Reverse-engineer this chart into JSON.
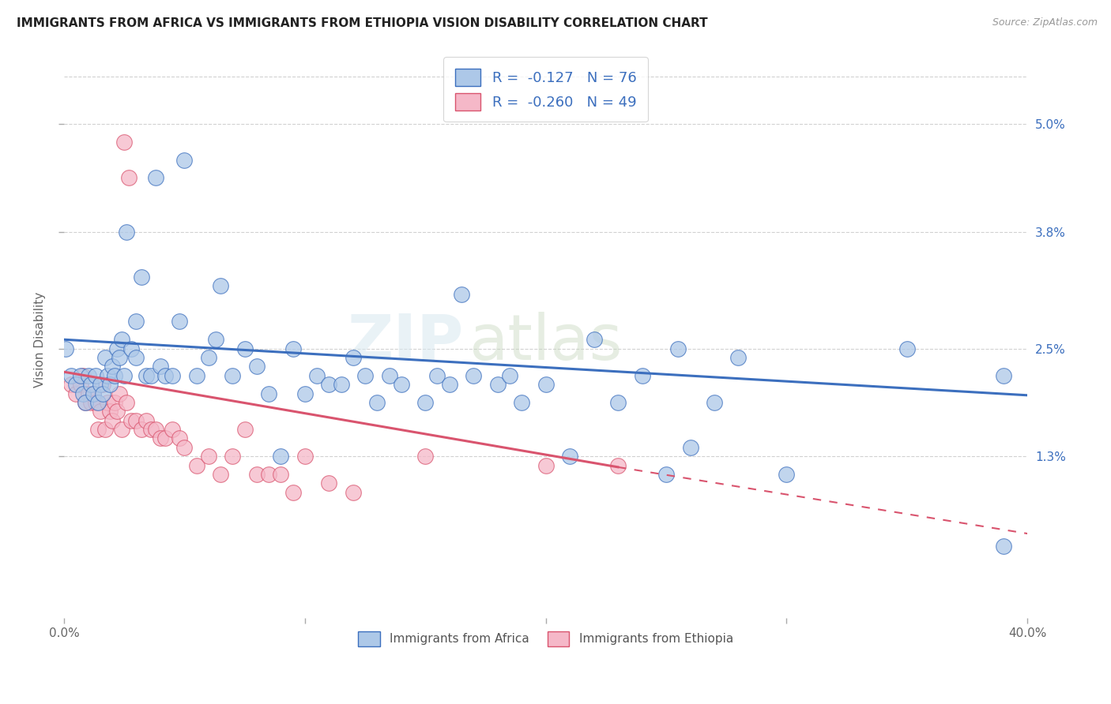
{
  "title": "IMMIGRANTS FROM AFRICA VS IMMIGRANTS FROM ETHIOPIA VISION DISABILITY CORRELATION CHART",
  "source": "Source: ZipAtlas.com",
  "ylabel": "Vision Disability",
  "right_yticks": [
    "5.0%",
    "3.8%",
    "2.5%",
    "1.3%"
  ],
  "right_ytick_vals": [
    0.05,
    0.038,
    0.025,
    0.013
  ],
  "xlim": [
    0.0,
    0.4
  ],
  "ylim": [
    -0.005,
    0.057
  ],
  "legend_R_africa": "-0.127",
  "legend_N_africa": "76",
  "legend_R_ethiopia": "-0.260",
  "legend_N_ethiopia": "49",
  "africa_color": "#adc8e8",
  "ethiopia_color": "#f5b8c8",
  "africa_line_color": "#3c6fbe",
  "ethiopia_line_color": "#d9546e",
  "watermark": "ZIPatlas",
  "africa_scatter_x": [
    0.0005,
    0.003,
    0.005,
    0.007,
    0.008,
    0.009,
    0.01,
    0.011,
    0.012,
    0.013,
    0.014,
    0.015,
    0.016,
    0.017,
    0.018,
    0.019,
    0.02,
    0.021,
    0.022,
    0.023,
    0.024,
    0.025,
    0.026,
    0.028,
    0.03,
    0.03,
    0.032,
    0.034,
    0.036,
    0.038,
    0.04,
    0.042,
    0.045,
    0.048,
    0.05,
    0.055,
    0.06,
    0.063,
    0.065,
    0.07,
    0.075,
    0.08,
    0.085,
    0.09,
    0.095,
    0.1,
    0.105,
    0.11,
    0.115,
    0.12,
    0.125,
    0.13,
    0.135,
    0.14,
    0.15,
    0.155,
    0.16,
    0.165,
    0.17,
    0.18,
    0.185,
    0.19,
    0.2,
    0.21,
    0.22,
    0.23,
    0.24,
    0.25,
    0.255,
    0.26,
    0.27,
    0.28,
    0.3,
    0.35,
    0.39,
    0.39
  ],
  "africa_scatter_y": [
    0.025,
    0.022,
    0.021,
    0.022,
    0.02,
    0.019,
    0.022,
    0.021,
    0.02,
    0.022,
    0.019,
    0.021,
    0.02,
    0.024,
    0.022,
    0.021,
    0.023,
    0.022,
    0.025,
    0.024,
    0.026,
    0.022,
    0.038,
    0.025,
    0.028,
    0.024,
    0.033,
    0.022,
    0.022,
    0.044,
    0.023,
    0.022,
    0.022,
    0.028,
    0.046,
    0.022,
    0.024,
    0.026,
    0.032,
    0.022,
    0.025,
    0.023,
    0.02,
    0.013,
    0.025,
    0.02,
    0.022,
    0.021,
    0.021,
    0.024,
    0.022,
    0.019,
    0.022,
    0.021,
    0.019,
    0.022,
    0.021,
    0.031,
    0.022,
    0.021,
    0.022,
    0.019,
    0.021,
    0.013,
    0.026,
    0.019,
    0.022,
    0.011,
    0.025,
    0.014,
    0.019,
    0.024,
    0.011,
    0.025,
    0.022,
    0.003
  ],
  "ethiopia_scatter_x": [
    0.003,
    0.005,
    0.007,
    0.008,
    0.009,
    0.01,
    0.011,
    0.012,
    0.013,
    0.014,
    0.015,
    0.016,
    0.017,
    0.018,
    0.019,
    0.02,
    0.021,
    0.022,
    0.023,
    0.024,
    0.025,
    0.026,
    0.027,
    0.028,
    0.03,
    0.032,
    0.034,
    0.036,
    0.038,
    0.04,
    0.042,
    0.045,
    0.048,
    0.05,
    0.055,
    0.06,
    0.065,
    0.07,
    0.075,
    0.08,
    0.085,
    0.09,
    0.095,
    0.1,
    0.11,
    0.12,
    0.15,
    0.2,
    0.23
  ],
  "ethiopia_scatter_y": [
    0.021,
    0.02,
    0.021,
    0.022,
    0.019,
    0.02,
    0.019,
    0.02,
    0.019,
    0.016,
    0.018,
    0.021,
    0.016,
    0.019,
    0.018,
    0.017,
    0.019,
    0.018,
    0.02,
    0.016,
    0.048,
    0.019,
    0.044,
    0.017,
    0.017,
    0.016,
    0.017,
    0.016,
    0.016,
    0.015,
    0.015,
    0.016,
    0.015,
    0.014,
    0.012,
    0.013,
    0.011,
    0.013,
    0.016,
    0.011,
    0.011,
    0.011,
    0.009,
    0.013,
    0.01,
    0.009,
    0.013,
    0.012,
    0.012
  ],
  "africa_line_start_x": 0.0,
  "africa_line_start_y": 0.026,
  "africa_line_end_x": 0.4,
  "africa_line_end_y": 0.0198,
  "ethiopia_line_start_x": 0.0,
  "ethiopia_line_start_y": 0.0224,
  "ethiopia_line_solid_end_x": 0.23,
  "ethiopia_line_solid_end_y": 0.0118,
  "ethiopia_line_dash_end_x": 0.4,
  "ethiopia_line_dash_end_y": 0.0044,
  "background_color": "#ffffff",
  "grid_color": "#cccccc"
}
